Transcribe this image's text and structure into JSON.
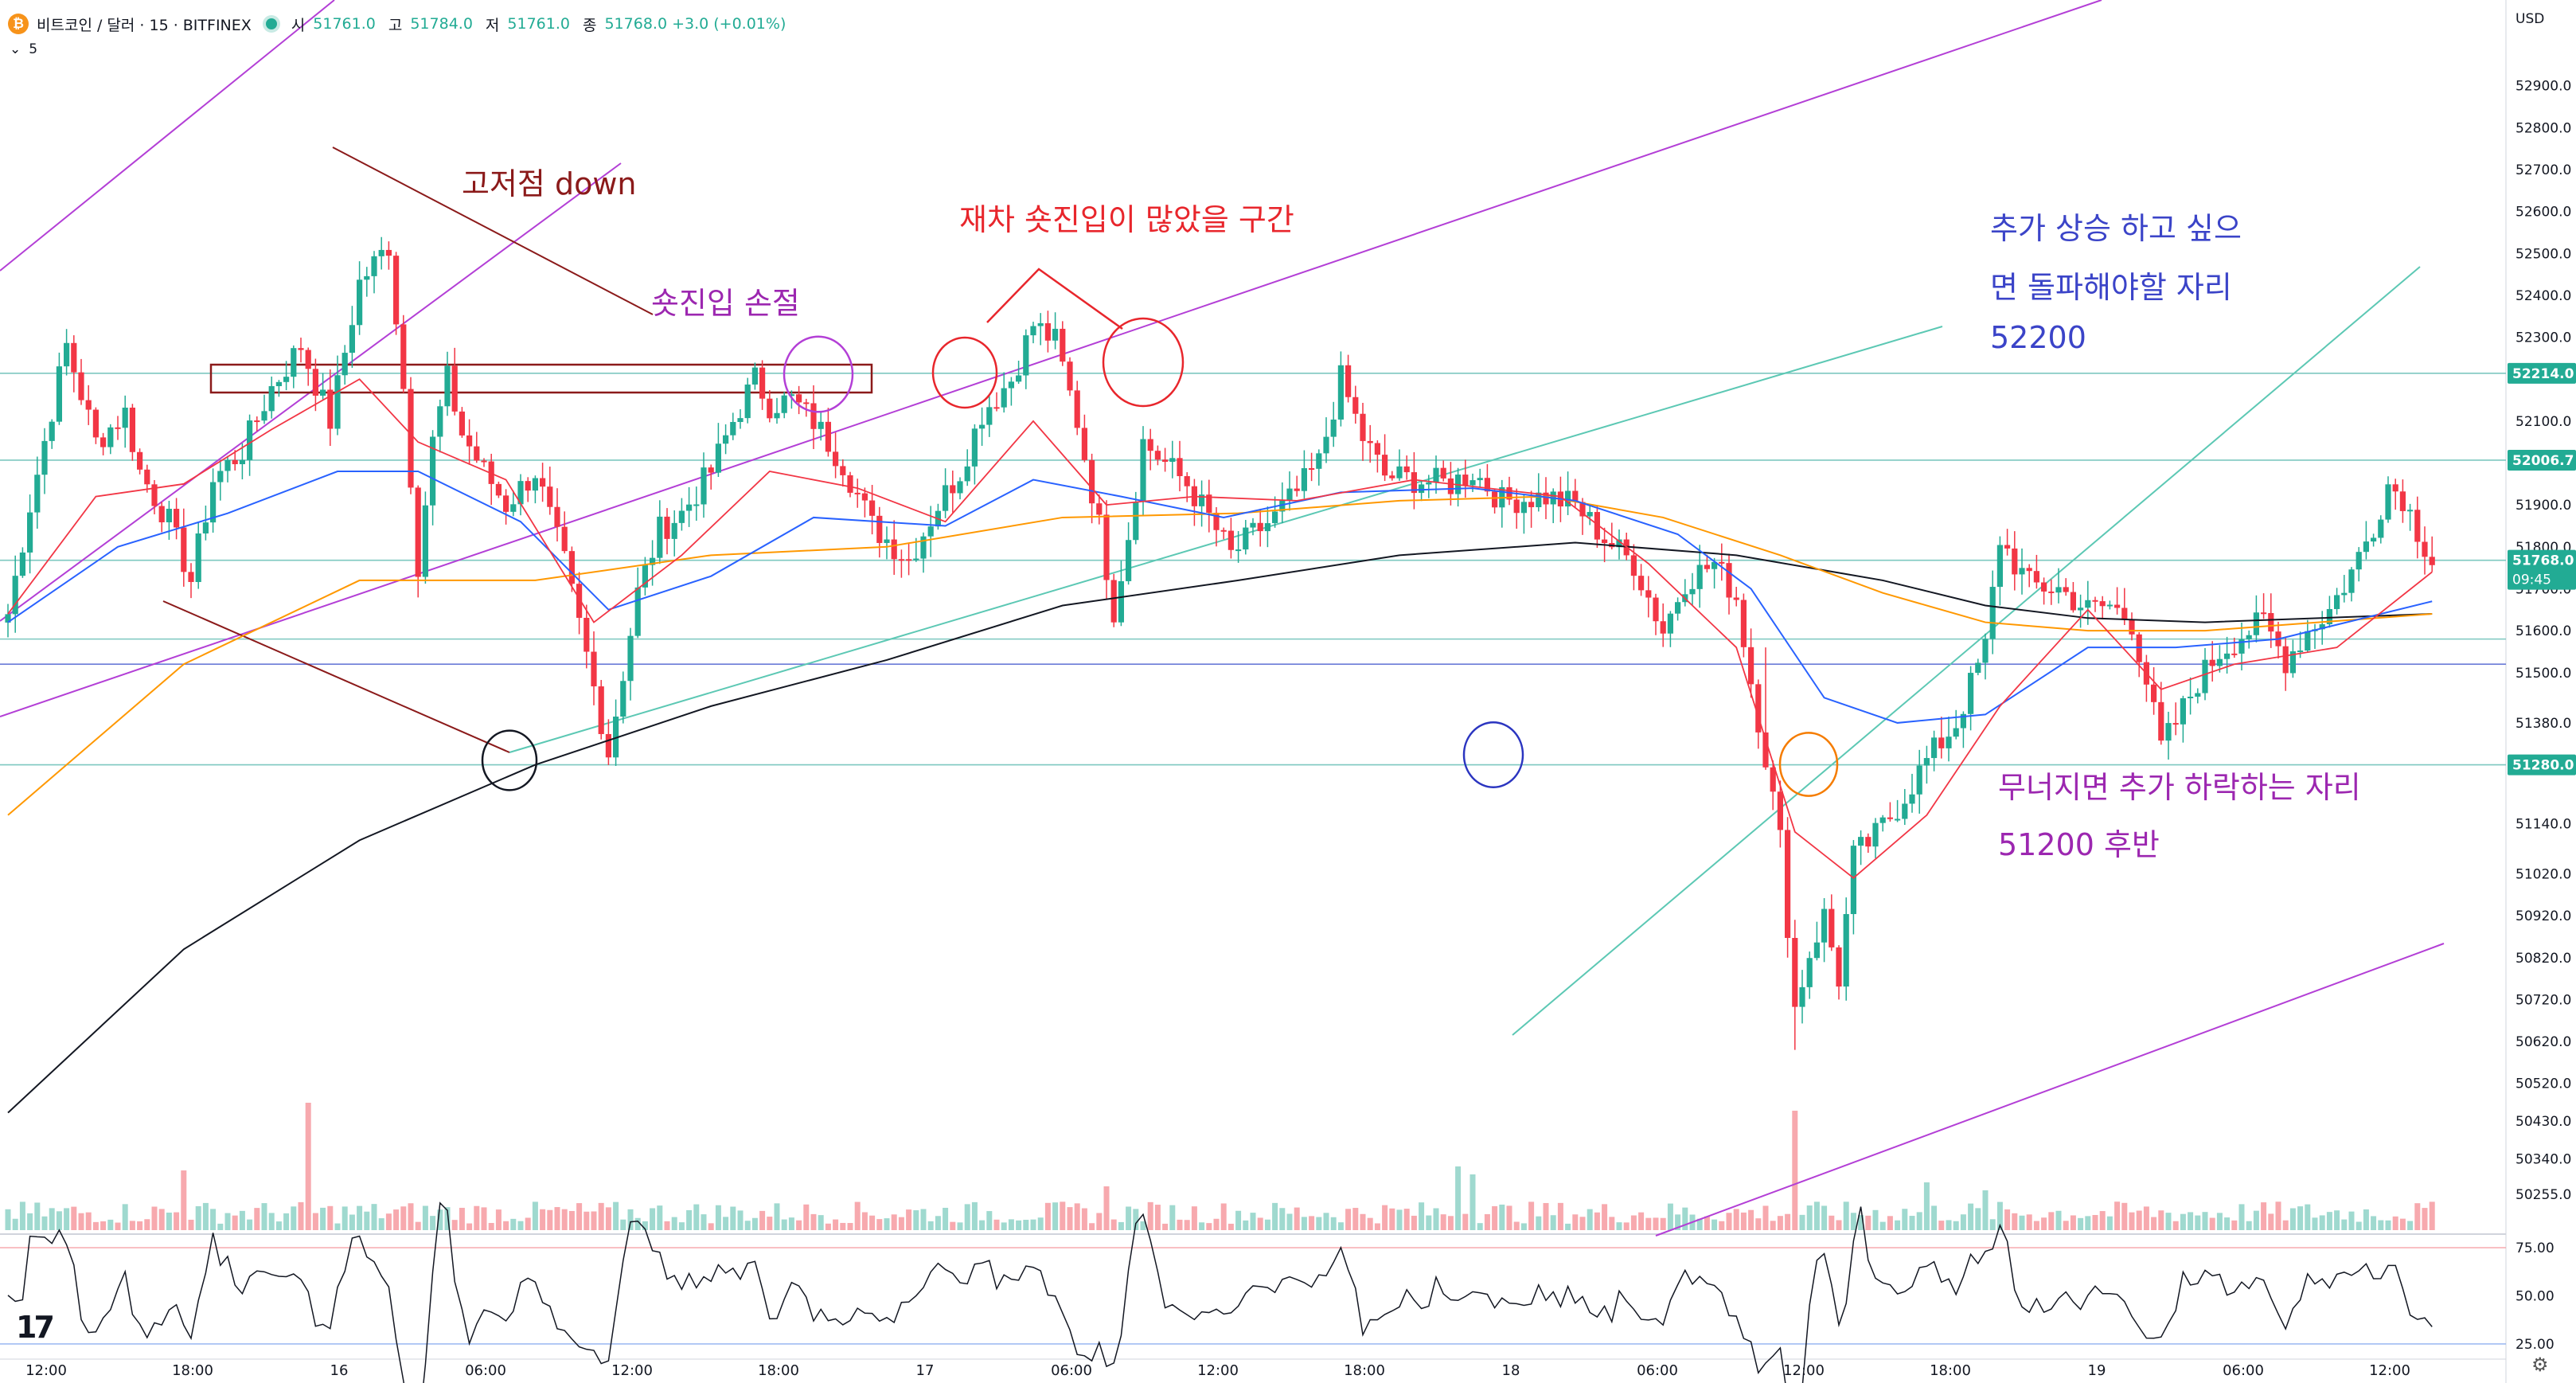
{
  "header": {
    "symbol": "비트코인 / 달러 · 15 · BITFINEX",
    "ohlc": [
      {
        "k": "시",
        "v": "51761.0"
      },
      {
        "k": "고",
        "v": "51784.0"
      },
      {
        "k": "저",
        "v": "51761.0"
      },
      {
        "k": "종",
        "v": "51768.0 +3.0 (+0.01%)"
      }
    ],
    "interval_badge": "5",
    "currency": "USD"
  },
  "annotations": {
    "gojeojeom": "고저점 down",
    "short_stop": "숏진입 손절",
    "short_zone": "재차 숏진입이 많았을 구간",
    "up_line1": "추가 상승 하고 싶으",
    "up_line2": "면 돌파해야할 자리",
    "up_line3": "52200",
    "down_line1": "무너지면 추가 하락하는 자리",
    "down_line2": "51200 후반"
  },
  "colors": {
    "up": "#22ab94",
    "down": "#f23645",
    "ma_red": "#f23645",
    "ma_blue": "#2962ff",
    "ma_orange": "#ff9800",
    "ma_black": "#131722",
    "purple": "#b33fd6",
    "teal": "#5cc8b4",
    "maroon": "#8b1a1a",
    "red_text": "#e8262c",
    "blue_text": "#3b44c8",
    "purple_text": "#9c27b0",
    "hline": "#7ec8c0",
    "hline_blue": "#6a7bd8",
    "circle_blue": "#2b35c0",
    "circle_orange": "#f57c00"
  },
  "chart_data": {
    "type": "candlestick",
    "yaxis": {
      "ylim": [
        50170,
        53000
      ],
      "ticks": [
        52900,
        52800,
        52700,
        52600,
        52500,
        52400,
        52300,
        52100,
        51900,
        51800,
        51700,
        51600,
        51500,
        51380,
        51140,
        51020,
        50920,
        50820,
        50720,
        50620,
        50520,
        50430,
        50340,
        50255
      ],
      "tick_labels": [
        "52900.0",
        "52800.0",
        "52700.0",
        "52600.0",
        "52500.0",
        "52400.0",
        "52300.0",
        "52100.0",
        "51900.0",
        "51800.0",
        "51700.0",
        "51600.0",
        "51500.0",
        "51380.0",
        "51140.0",
        "51020.0",
        "50920.0",
        "50820.0",
        "50720.0",
        "50620.0",
        "50520.0",
        "50430.0",
        "50340.0",
        "50255.0"
      ],
      "price_labels": [
        {
          "value": 52214,
          "text": "52214.0",
          "bg": "#22ab94"
        },
        {
          "value": 52006.7,
          "text": "52006.7",
          "bg": "#22ab94"
        },
        {
          "value": 51768,
          "text": "51768.0",
          "text2": "09:45",
          "bg": "#22ab94"
        },
        {
          "value": 51280,
          "text": "51280.0",
          "bg": "#22ab94"
        }
      ]
    },
    "xaxis": {
      "labels": [
        "12:00",
        "18:00",
        "16",
        "06:00",
        "12:00",
        "18:00",
        "17",
        "06:00",
        "12:00",
        "18:00",
        "18",
        "06:00",
        "12:00",
        "18:00",
        "19",
        "06:00",
        "12:00"
      ],
      "label_index": [
        0,
        24,
        48,
        72,
        96,
        120,
        144,
        168,
        192,
        216,
        240,
        264,
        288,
        312,
        336,
        360,
        384
      ]
    },
    "hlines": [
      52214,
      52006.7,
      51768,
      51580,
      51520,
      51280
    ],
    "keypoints": [
      [
        0,
        51640
      ],
      [
        3,
        51900
      ],
      [
        8,
        52280
      ],
      [
        12,
        52050
      ],
      [
        16,
        52120
      ],
      [
        18,
        51980
      ],
      [
        22,
        51860
      ],
      [
        25,
        51720
      ],
      [
        28,
        51960
      ],
      [
        32,
        52030
      ],
      [
        36,
        52180
      ],
      [
        40,
        52280
      ],
      [
        44,
        52100
      ],
      [
        48,
        52430
      ],
      [
        52,
        52520
      ],
      [
        54,
        52180
      ],
      [
        56,
        51760
      ],
      [
        58,
        52050
      ],
      [
        60,
        52200
      ],
      [
        62,
        52070
      ],
      [
        65,
        51980
      ],
      [
        68,
        51900
      ],
      [
        72,
        51980
      ],
      [
        76,
        51760
      ],
      [
        79,
        51540
      ],
      [
        82,
        51310
      ],
      [
        86,
        51690
      ],
      [
        89,
        51840
      ],
      [
        92,
        51880
      ],
      [
        96,
        51980
      ],
      [
        99,
        52100
      ],
      [
        102,
        52200
      ],
      [
        104,
        52140
      ],
      [
        107,
        52150
      ],
      [
        110,
        52100
      ],
      [
        114,
        52000
      ],
      [
        118,
        51850
      ],
      [
        123,
        51770
      ],
      [
        127,
        51900
      ],
      [
        130,
        51980
      ],
      [
        133,
        52120
      ],
      [
        137,
        52200
      ],
      [
        140,
        52330
      ],
      [
        143,
        52290
      ],
      [
        146,
        52100
      ],
      [
        149,
        51850
      ],
      [
        151,
        51650
      ],
      [
        153,
        51830
      ],
      [
        155,
        52050
      ],
      [
        158,
        52000
      ],
      [
        161,
        51950
      ],
      [
        164,
        51870
      ],
      [
        167,
        51780
      ],
      [
        170,
        51830
      ],
      [
        173,
        51870
      ],
      [
        176,
        51930
      ],
      [
        179,
        52000
      ],
      [
        182,
        52200
      ],
      [
        185,
        52060
      ],
      [
        188,
        51970
      ],
      [
        192,
        51960
      ],
      [
        197,
        51950
      ],
      [
        200,
        51980
      ],
      [
        204,
        51910
      ],
      [
        210,
        51920
      ],
      [
        214,
        51900
      ],
      [
        218,
        51820
      ],
      [
        222,
        51760
      ],
      [
        226,
        51600
      ],
      [
        229,
        51720
      ],
      [
        233,
        51760
      ],
      [
        236,
        51680
      ],
      [
        238,
        51480
      ],
      [
        240,
        51300
      ],
      [
        242,
        51100
      ],
      [
        244,
        50700
      ],
      [
        246,
        50830
      ],
      [
        248,
        50920
      ],
      [
        250,
        50770
      ],
      [
        252,
        51060
      ],
      [
        255,
        51110
      ],
      [
        258,
        51180
      ],
      [
        262,
        51290
      ],
      [
        266,
        51380
      ],
      [
        270,
        51560
      ],
      [
        272,
        51820
      ],
      [
        274,
        51760
      ],
      [
        276,
        51710
      ],
      [
        280,
        51700
      ],
      [
        284,
        51650
      ],
      [
        287,
        51660
      ],
      [
        290,
        51620
      ],
      [
        292,
        51480
      ],
      [
        294,
        51320
      ],
      [
        296,
        51380
      ],
      [
        299,
        51480
      ],
      [
        302,
        51550
      ],
      [
        305,
        51590
      ],
      [
        308,
        51620
      ],
      [
        311,
        51530
      ],
      [
        314,
        51600
      ],
      [
        317,
        51650
      ],
      [
        320,
        51740
      ],
      [
        323,
        51850
      ],
      [
        325,
        51950
      ],
      [
        327,
        51920
      ],
      [
        329,
        51840
      ],
      [
        331,
        51770
      ]
    ],
    "ma_short": [
      [
        0,
        51640
      ],
      [
        12,
        51920
      ],
      [
        24,
        51950
      ],
      [
        36,
        52080
      ],
      [
        48,
        52200
      ],
      [
        56,
        52050
      ],
      [
        68,
        51960
      ],
      [
        80,
        51620
      ],
      [
        92,
        51780
      ],
      [
        104,
        51980
      ],
      [
        116,
        51940
      ],
      [
        128,
        51860
      ],
      [
        140,
        52100
      ],
      [
        150,
        51900
      ],
      [
        162,
        51920
      ],
      [
        176,
        51910
      ],
      [
        192,
        51960
      ],
      [
        212,
        51920
      ],
      [
        224,
        51760
      ],
      [
        236,
        51560
      ],
      [
        244,
        51120
      ],
      [
        252,
        51010
      ],
      [
        262,
        51160
      ],
      [
        272,
        51420
      ],
      [
        284,
        51650
      ],
      [
        294,
        51460
      ],
      [
        304,
        51520
      ],
      [
        318,
        51560
      ],
      [
        331,
        51740
      ]
    ],
    "ma_mid": [
      [
        0,
        51620
      ],
      [
        15,
        51800
      ],
      [
        30,
        51880
      ],
      [
        45,
        51980
      ],
      [
        56,
        51980
      ],
      [
        70,
        51860
      ],
      [
        82,
        51650
      ],
      [
        96,
        51730
      ],
      [
        110,
        51870
      ],
      [
        128,
        51850
      ],
      [
        140,
        51960
      ],
      [
        152,
        51920
      ],
      [
        166,
        51870
      ],
      [
        182,
        51930
      ],
      [
        200,
        51940
      ],
      [
        214,
        51910
      ],
      [
        228,
        51830
      ],
      [
        238,
        51700
      ],
      [
        248,
        51440
      ],
      [
        258,
        51380
      ],
      [
        270,
        51400
      ],
      [
        284,
        51560
      ],
      [
        296,
        51560
      ],
      [
        310,
        51580
      ],
      [
        331,
        51670
      ]
    ],
    "ma_orange": [
      [
        0,
        51160
      ],
      [
        24,
        51520
      ],
      [
        48,
        51720
      ],
      [
        72,
        51720
      ],
      [
        96,
        51780
      ],
      [
        120,
        51800
      ],
      [
        144,
        51870
      ],
      [
        168,
        51880
      ],
      [
        190,
        51910
      ],
      [
        210,
        51920
      ],
      [
        226,
        51870
      ],
      [
        242,
        51780
      ],
      [
        256,
        51690
      ],
      [
        270,
        51620
      ],
      [
        284,
        51600
      ],
      [
        300,
        51600
      ],
      [
        331,
        51640
      ]
    ],
    "ma_black": [
      [
        0,
        50450
      ],
      [
        24,
        50840
      ],
      [
        48,
        51100
      ],
      [
        72,
        51280
      ],
      [
        96,
        51420
      ],
      [
        120,
        51530
      ],
      [
        144,
        51660
      ],
      [
        168,
        51720
      ],
      [
        190,
        51780
      ],
      [
        214,
        51810
      ],
      [
        236,
        51780
      ],
      [
        256,
        51720
      ],
      [
        270,
        51660
      ],
      [
        284,
        51630
      ],
      [
        300,
        51620
      ],
      [
        331,
        51640
      ]
    ],
    "volume_ylim": [
      0,
      100
    ],
    "rsi": {
      "ylim": [
        20,
        80
      ],
      "levels": [
        75,
        50,
        25
      ],
      "labels": [
        "75.00",
        "50.00",
        "25.00"
      ]
    }
  }
}
